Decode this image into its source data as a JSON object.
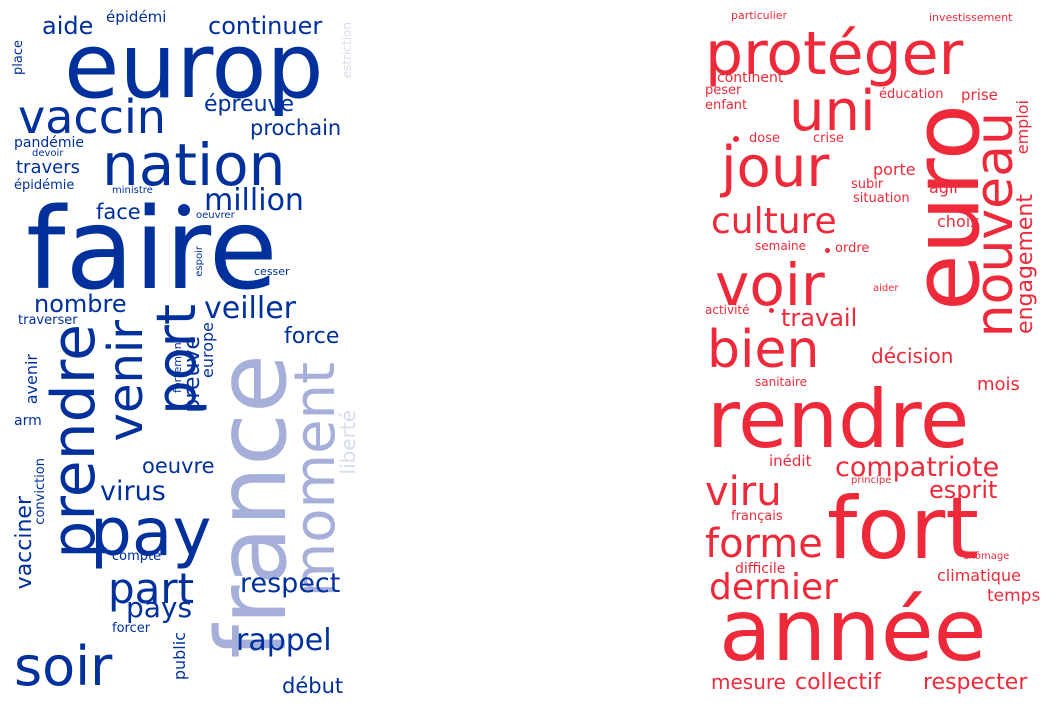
{
  "colors": {
    "blue": "#00309b",
    "light_blue": "#a5afd9",
    "pale_blue": "#d8dcee",
    "red": "#ee2a3a",
    "background": "#ffffff"
  },
  "left_cloud": {
    "w1": "europ",
    "w2": "faire",
    "w3": "nation",
    "w4": "vaccin",
    "w5": "aide",
    "w6": "épidémi",
    "w7": "continuer",
    "w8": "estriction",
    "w9": "place",
    "w10": "épreuve",
    "w11": "prochain",
    "w12": "pandémie",
    "w13": "devoir",
    "w14": "travers",
    "w15": "épidémie",
    "w16": "ministre",
    "w17": "million",
    "w18": "face",
    "w19": "oeuvrer",
    "w20": "espoir",
    "w21": "cesser",
    "w22": "nombre",
    "w23": "veiller",
    "w24": "traverser",
    "w25": "prendre",
    "w26": "venir",
    "w27": "port",
    "w28": "preuve",
    "w29": "europe",
    "w30": "force",
    "w31": "france",
    "w32": "moment",
    "w33": "liberté",
    "w34": "avenir",
    "w35": "fortement",
    "w36": "arm",
    "w37": "oeuvre",
    "w38": "virus",
    "w39": "pay",
    "w40": "conviction",
    "w41": "vacciner",
    "w42": "compte",
    "w43": "part",
    "w44": "respect",
    "w45": "pays",
    "w46": "forcer",
    "w47": "rappel",
    "w48": "soir",
    "w49": "public",
    "w50": "début"
  },
  "right_cloud": {
    "w1": "particulier",
    "w2": "investissement",
    "w3": "protéger",
    "w4": "uni",
    "w5": "continent",
    "w6": "peser",
    "w7": "enfant",
    "w8": "éducation",
    "w9": "prise",
    "w10": "euro",
    "w11": "emploi",
    "w12": "dose",
    "w13": "crise",
    "w14": "jour",
    "w15": "nouveau",
    "w16": "porte",
    "w17": "subir",
    "w18": "agir",
    "w19": "situation",
    "w20": "culture",
    "w21": "choix",
    "w22": "engagement",
    "w23": "semaine",
    "w24": "ordre",
    "w25": "voir",
    "w26": "aider",
    "w27": "activité",
    "w28": "travail",
    "w29": "bien",
    "w30": "décision",
    "w31": "sanitaire",
    "w32": "mois",
    "w33": "rendre",
    "w34": "inédit",
    "w35": "compatriote",
    "w36": "principe",
    "w37": "viru",
    "w38": "esprit",
    "w39": "français",
    "w40": "fort",
    "w41": "forme",
    "w42": "chômage",
    "w43": "difficile",
    "w44": "dernier",
    "w45": "climatique",
    "w46": "temps",
    "w47": "année",
    "w48": "mesure",
    "w49": "collectif",
    "w50": "respecter"
  }
}
